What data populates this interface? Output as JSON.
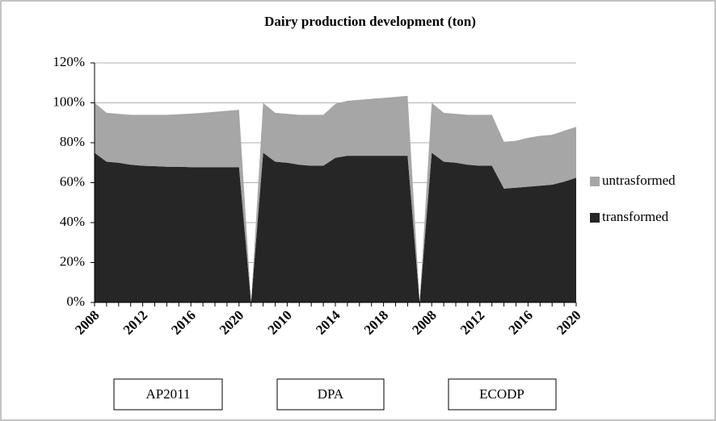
{
  "chart_data": {
    "type": "stacked-area",
    "title": "Dairy production development (ton)",
    "categories": [
      "2008",
      null,
      null,
      null,
      "2012",
      null,
      null,
      null,
      "2016",
      null,
      null,
      null,
      "2020",
      null,
      null,
      null,
      "2010",
      null,
      null,
      null,
      "2014",
      null,
      null,
      null,
      "2018",
      null,
      null,
      null,
      "2008",
      null,
      null,
      null,
      "2012",
      null,
      null,
      null,
      "2016",
      null,
      null,
      null,
      "2020"
    ],
    "series": [
      {
        "name": "transformed",
        "color": "#262626",
        "values": [
          75,
          70.5,
          70,
          69,
          68.5,
          68.3,
          68,
          68,
          67.8,
          67.8,
          67.8,
          67.8,
          67.8,
          0,
          75,
          70.5,
          70,
          69,
          68.5,
          68.5,
          72.5,
          73.5,
          73.5,
          73.5,
          73.5,
          73.5,
          73.5,
          0,
          75,
          70.5,
          70,
          69,
          68.5,
          68.5,
          57,
          57.5,
          58,
          58.5,
          59,
          60.5,
          62.5
        ]
      },
      {
        "name": "untrasformed",
        "color": "#a6a6a6",
        "values": [
          25,
          24.5,
          24.5,
          25,
          25.5,
          25.7,
          26,
          26.3,
          26.8,
          27.2,
          27.7,
          28.2,
          28.7,
          0,
          25,
          24.5,
          24.5,
          25,
          25.5,
          25.5,
          27,
          27.5,
          28,
          28.5,
          29,
          29.5,
          30,
          0,
          25,
          24.5,
          24.5,
          25,
          25.5,
          25.5,
          23.5,
          23.5,
          24.5,
          25,
          25,
          25.5,
          25.5
        ]
      }
    ],
    "ylim": [
      0,
      120
    ],
    "yticks": [
      {
        "value": 0,
        "label": "0%"
      },
      {
        "value": 20,
        "label": "20%"
      },
      {
        "value": 40,
        "label": "40%"
      },
      {
        "value": 60,
        "label": "60%"
      },
      {
        "value": 80,
        "label": "80%"
      },
      {
        "value": 100,
        "label": "100%"
      },
      {
        "value": 120,
        "label": "120%"
      }
    ],
    "grid": true,
    "legend": "right",
    "groups": [
      "AP2011",
      "DPA",
      "ECODP"
    ]
  }
}
